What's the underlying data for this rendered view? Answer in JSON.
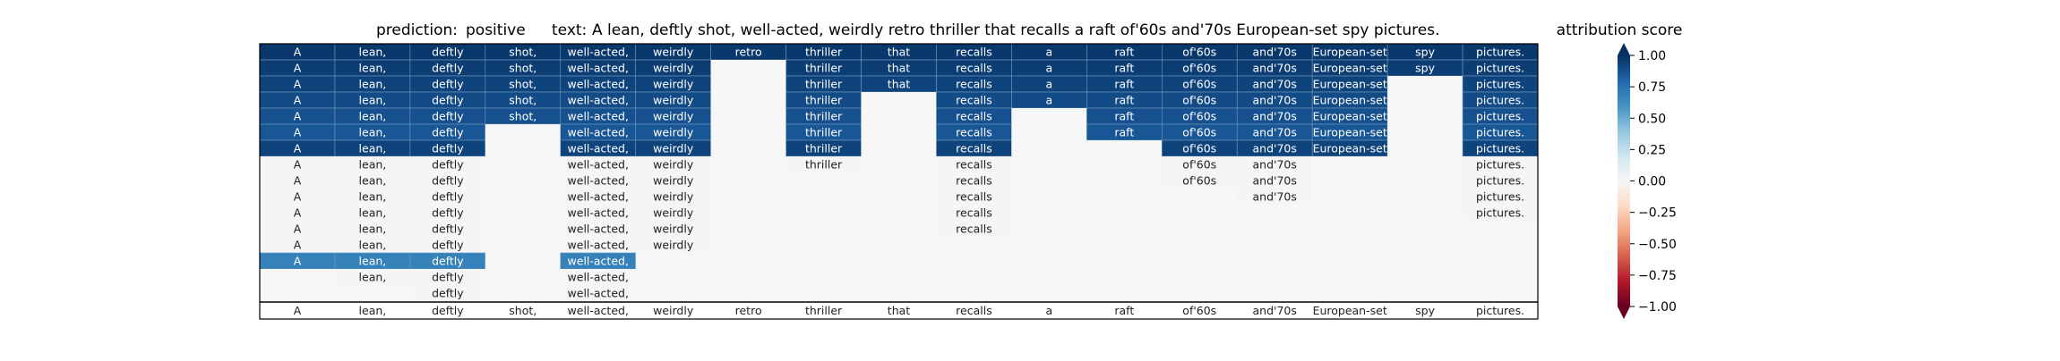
{
  "chart_data": {
    "type": "heatmap",
    "header": {
      "prediction_label": "prediction:",
      "prediction_value": "positive",
      "text_label": "text:",
      "text_value": "A lean, deftly shot, well-acted, weirdly retro thriller that recalls a raft of'60s and'70s European-set spy pictures."
    },
    "tokens": [
      "A",
      "lean,",
      "deftly",
      "shot,",
      "well-acted,",
      "weirdly",
      "retro",
      "thriller",
      "that",
      "recalls",
      "a",
      "raft",
      "of'60s",
      "and'70s",
      "European-set",
      "spy",
      "pictures."
    ],
    "rows": [
      [
        0.97,
        0.97,
        0.97,
        0.97,
        0.97,
        0.97,
        0.97,
        0.97,
        0.97,
        0.97,
        0.97,
        0.97,
        0.97,
        0.97,
        0.97,
        0.97,
        0.97
      ],
      [
        0.95,
        0.95,
        0.95,
        0.95,
        0.95,
        0.95,
        0,
        0.95,
        0.95,
        0.95,
        0.95,
        0.95,
        0.95,
        0.95,
        0.95,
        0.95,
        0.95
      ],
      [
        0.93,
        0.93,
        0.93,
        0.93,
        0.93,
        0.93,
        0,
        0.93,
        0.93,
        0.93,
        0.93,
        0.93,
        0.93,
        0.93,
        0.93,
        0,
        0.93
      ],
      [
        0.9,
        0.9,
        0.9,
        0.9,
        0.9,
        0.9,
        0,
        0.9,
        0,
        0.9,
        0.9,
        0.9,
        0.9,
        0.9,
        0.9,
        0,
        0.9
      ],
      [
        0.88,
        0.88,
        0.88,
        0.88,
        0.88,
        0.88,
        0,
        0.88,
        0,
        0.88,
        0,
        0.88,
        0.88,
        0.88,
        0.88,
        0,
        0.88
      ],
      [
        0.86,
        0.86,
        0.86,
        0,
        0.86,
        0.86,
        0,
        0.86,
        0,
        0.86,
        0,
        0.86,
        0.86,
        0.86,
        0.86,
        0,
        0.86
      ],
      [
        0.93,
        0.93,
        0.93,
        0,
        0.93,
        0.93,
        0,
        0.93,
        0,
        0.93,
        0,
        0,
        0.93,
        0.93,
        0.93,
        0,
        0.93
      ],
      [
        0.02,
        0.02,
        0.02,
        0,
        0.02,
        0.02,
        0,
        0.02,
        0,
        0.02,
        0,
        0,
        0.02,
        0.02,
        0,
        0,
        0.02
      ],
      [
        0.02,
        0.02,
        0.02,
        0,
        0.02,
        0.02,
        0,
        0,
        0,
        0.02,
        0,
        0,
        0.02,
        0.02,
        0,
        0,
        0.02
      ],
      [
        0.02,
        0.02,
        0.02,
        0,
        0.02,
        0.02,
        0,
        0,
        0,
        0.02,
        0,
        0,
        0,
        0.02,
        0,
        0,
        0.02
      ],
      [
        0.02,
        0.02,
        0.02,
        0,
        0.02,
        0.02,
        0,
        0,
        0,
        0.02,
        0,
        0,
        0,
        0,
        0,
        0,
        0.02
      ],
      [
        0.02,
        0.02,
        0.02,
        0,
        0.02,
        0.02,
        0,
        0,
        0,
        0.02,
        0,
        0,
        0,
        0,
        0,
        0,
        0
      ],
      [
        0.02,
        0.02,
        0.02,
        0,
        0.02,
        0.02,
        0,
        0,
        0,
        0,
        0,
        0,
        0,
        0,
        0,
        0,
        0
      ],
      [
        0.68,
        0.68,
        0.68,
        0,
        0.68,
        0,
        0,
        0,
        0,
        0,
        0,
        0,
        0,
        0,
        0,
        0,
        0
      ],
      [
        0,
        0.02,
        0.02,
        0,
        0.02,
        0,
        0,
        0,
        0,
        0,
        0,
        0,
        0,
        0,
        0,
        0,
        0
      ],
      [
        0,
        0,
        0.02,
        0,
        0.02,
        0,
        0,
        0,
        0,
        0,
        0,
        0,
        0,
        0,
        0,
        0,
        0
      ]
    ],
    "colorbar": {
      "label": "attribution score",
      "range": [
        -1.0,
        1.0
      ],
      "ticks": [
        1.0,
        0.75,
        0.5,
        0.25,
        0.0,
        -0.25,
        -0.5,
        -0.75,
        -1.0
      ],
      "tick_labels": [
        "1.00",
        "0.75",
        "0.50",
        "0.25",
        "0.00",
        "−0.25",
        "−0.50",
        "−0.75",
        "−1.00"
      ],
      "colormap": "RdBu"
    },
    "colors": {
      "cell_border": "#6f9bbf",
      "frame": "#000000",
      "text_dark_bg": "#ffffff",
      "text_light_bg": "#222222"
    }
  }
}
